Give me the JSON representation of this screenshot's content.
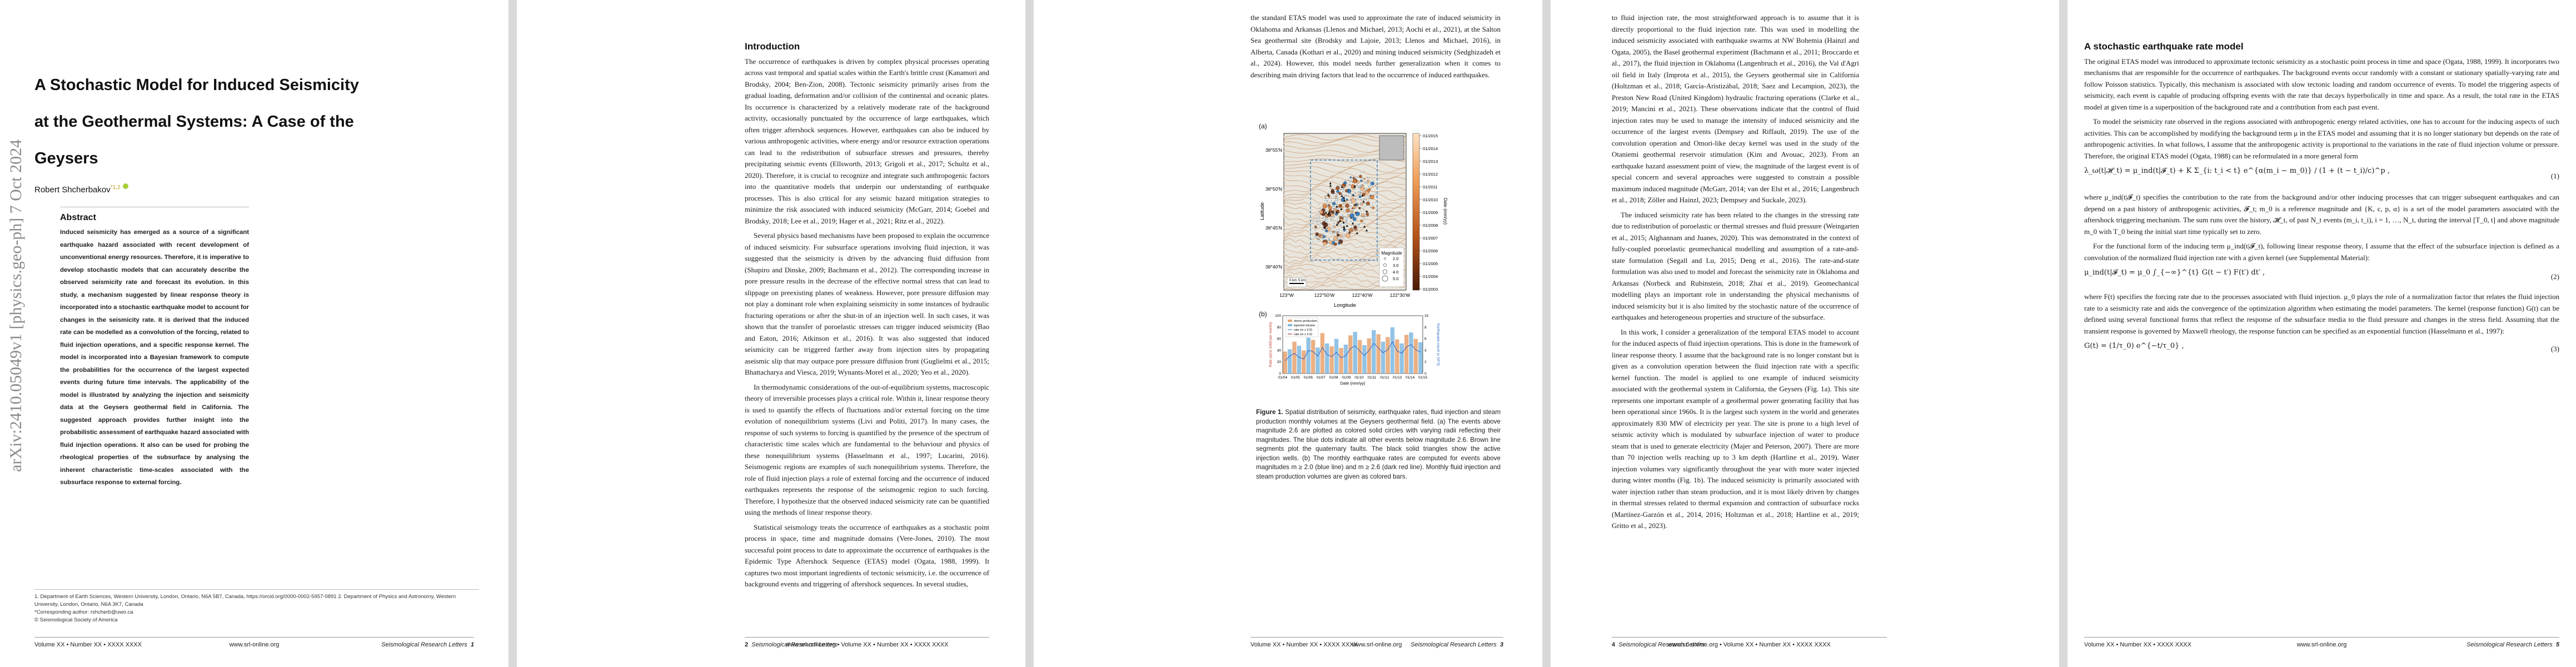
{
  "pages": [
    {
      "number": "1",
      "footer_left": "Volume XX • Number XX • XXXX XXXX",
      "footer_mid": "www.srl-online.org",
      "footer_right": "Seismological Research Letters"
    },
    {
      "number": "2",
      "footer_left": "Seismological Research Letters",
      "footer_mid": "www.srl-online.org • Volume XX • Number XX • XXXX XXXX",
      "footer_right": ""
    },
    {
      "number": "3",
      "footer_left": "Volume XX • Number XX • XXXX XXXX",
      "footer_mid": "www.srl-online.org",
      "footer_right": "Seismological Research Letters"
    },
    {
      "number": "4",
      "footer_left": "Seismological Research Letters",
      "footer_mid": "www.srl-online.org • Volume XX • Number XX • XXXX XXXX",
      "footer_right": ""
    },
    {
      "number": "5",
      "footer_left": "Volume XX • Number XX • XXXX XXXX",
      "footer_mid": "www.srl-online.org",
      "footer_right": "Seismological Research Letters"
    }
  ],
  "page1": {
    "arxiv_stamp": "arXiv:2410.05049v1  [physics.geo-ph]  7 Oct 2024",
    "title_lines": [
      "A Stochastic Model for Induced Seismicity",
      "at the Geothermal Systems: A Case of the",
      "Geysers"
    ],
    "author": "Robert Shcherbakov",
    "author_sup": "*1,2",
    "abstract_heading": "Abstract",
    "abstract": "Induced seismicity has emerged as a source of a significant earthquake hazard associated with recent development of unconventional energy resources. Therefore, it is imperative to develop stochastic models that can accurately describe the observed seismicity rate and forecast its evolution. In this study, a mechanism suggested by linear response theory is incorporated into a stochastic earthquake model to account for changes in the seismicity rate. It is derived that the induced rate can be modelled as a convolution of the forcing, related to fluid injection operations, and a specific response kernel. The model is incorporated into a Bayesian framework to compute the probabilities for the occurrence of the largest expected events during future time intervals. The applicability of the model is illustrated by analyzing the injection and seismicity data at the Geysers geothermal field in California. The suggested approach provides further insight into the probabilistic assessment of earthquake hazard associated with fluid injection operations. It also can be used for probing the rheological properties of the subsurface by analysing the inherent characteristic time-scales associated with the subsurface response to external forcing.",
    "footnotes": [
      "1. Department of Earth Sciences, Western University, London, Ontario, N6A 5B7, Canada, https://orcid.org/0000-0002-5957-0891 2. Department of Physics and Astronomy, Western University, London, Ontario, N6A 3K7, Canada",
      "*Corresponding author: rshcherb@uwo.ca",
      "© Seismological Society of America"
    ]
  },
  "page2": {
    "heading": "Introduction",
    "paragraphs": [
      "The occurrence of earthquakes is driven by complex physical processes operating across vast temporal and spatial scales within the Earth's brittle crust (Kanamori and Brodsky, 2004; Ben-Zion, 2008). Tectonic seismicity primarily arises from the gradual loading, deformation and/or collision of the continental and oceanic plates. Its occurrence is characterized by a relatively moderate rate of the background activity, occasionally punctuated by the occurrence of large earthquakes, which often trigger aftershock sequences. However, earthquakes can also be induced by various anthropogenic activities, where energy and/or resource extraction operations can lead to the redistribution of subsurface stresses and pressures, thereby precipitating seismic events (Ellsworth, 2013; Grigoli et al., 2017; Schultz et al., 2020). Therefore, it is crucial to recognize and integrate such anthropogenic factors into the quantitative models that underpin our understanding of earthquake processes. This is also critical for any seismic hazard mitigation strategies to minimize the risk associated with induced seismicity (McGarr, 2014; Goebel and Brodsky, 2018; Lee et al., 2019; Hager et al., 2021; Ritz et al., 2022).",
      "Several physics based mechanisms have been proposed to explain the occurrence of induced seismicity. For subsurface operations involving fluid injection, it was suggested that the seismicity is driven by the advancing fluid diffusion front (Shapiro and Dinske, 2009; Bachmann et al., 2012). The corresponding increase in pore pressure results in the decrease of the effective normal stress that can lead to slippage on preexisting planes of weakness. However, pore pressure diffusion may not play a dominant role when explaining seismicity in some instances of hydraulic fracturing operations or after the shut-in of an injection well. In such cases, it was shown that the transfer of poroelastic stresses can trigger induced seismicity (Bao and Eaton, 2016; Atkinson et al., 2016). It was also suggested that induced seismicity can be triggered farther away from injection sites by propagating aseismic slip that may outpace pore pressure diffusion front (Guglielmi et al., 2015; Bhattacharya and Viesca, 2019; Wynants-Morel et al., 2020; Yeo et al., 2020).",
      "In thermodynamic considerations of the out-of-equilibrium systems, macroscopic theory of irreversible processes plays a critical role. Within it, linear response theory is used to quantify the effects of fluctuations and/or external forcing on the time evolution of nonequilibrium systems (Livi and Politi, 2017). In many cases, the response of such systems to forcing is quantified by the presence of the spectrum of characteristic time scales which are fundamental to the behaviour and physics of these nonequilibrium systems (Hasselmann et al., 1997; Lucarini, 2016). Seismogenic regions are examples of such nonequilibrium systems. Therefore, the role of fluid injection plays a role of external forcing and the occurrence of induced earthquakes represents the response of the seismogenic region to such forcing. Therefore, I hypothesize that the observed induced seismicity rate can be quantified using the methods of linear response theory.",
      "Statistical seismology treats the occurrence of earthquakes as a stochastic point process in space, time and magnitude domains (Vere-Jones, 2010). The most successful point process to date to approximate the occurrence of earthquakes is the Epidemic Type Aftershock Sequence (ETAS) model (Ogata, 1988, 1999). It captures two most important ingredients of tectonic seismicity, i.e. the occurrence of background events and triggering of aftershock sequences. In several studies,"
    ]
  },
  "page3": {
    "paragraph": "the standard ETAS model was used to approximate the rate of induced seismicity in Oklahoma and Arkansas (Llenos and Michael, 2013; Aochi et al., 2021), at the Salton Sea geothermal site (Brodsky and Lajoie, 2013; Llenos and Michael, 2016), in Alberta, Canada (Kothari et al., 2020) and mining induced seismicity (Sedghizadeh et al., 2024). However, this model needs further generalization when it comes to describing main driving factors that lead to the occurrence of induced earthquakes.",
    "panel_a_label": "(a)",
    "panel_b_label": "(b)",
    "map": {
      "lat_ticks": [
        "38°55'N",
        "38°50'N",
        "38°45'N",
        "38°40'N"
      ],
      "lon_ticks": [
        "123°W",
        "122°50'W",
        "122°40'W",
        "122°30'W"
      ],
      "xlabel": "Longitude",
      "ylabel": "Latitude",
      "colorbar_ticks": [
        "01/2015",
        "01/2014",
        "01/2013",
        "01/2012",
        "01/2011",
        "01/2010",
        "01/2009",
        "01/2008",
        "01/2007",
        "01/2006",
        "01/2005",
        "01/2004",
        "01/2003"
      ],
      "colorbar_label": "Date (mm/yy)",
      "legend_title": "Magnitude",
      "legend_items": [
        "2.0",
        "3.0",
        "4.0",
        "5.0"
      ],
      "scale_labels": [
        "5 km",
        "0 km"
      ]
    },
    "chart_data": {
      "type": "bar",
      "xlabel": "Date (mm/yy)",
      "ylabel_left": "Rate (eq's/ 1000 per month)",
      "ylabel_right": "Earthquake count (x 10^3)",
      "x_ticks": [
        "01/04",
        "01/05",
        "01/06",
        "01/07",
        "01/08",
        "01/09",
        "01/10",
        "01/11",
        "01/12",
        "01/13",
        "01/14",
        "01/15"
      ],
      "y_ticks_left": [
        "0",
        "20",
        "40",
        "60",
        "80",
        "100"
      ],
      "y_ticks_right": [
        "0",
        "2",
        "4",
        "6",
        "8",
        "10"
      ],
      "legend": [
        "stress production",
        "injected volume",
        "rate (m ≥ 2.0)",
        "rate (m ≥ 2.6)"
      ],
      "series": [
        {
          "name": "injected volume",
          "values": [
            38,
            42,
            55,
            48,
            40,
            62,
            58,
            45,
            70,
            52,
            47,
            60,
            44,
            50,
            66,
            72,
            58,
            49,
            61,
            75,
            68,
            55,
            63,
            80,
            59,
            52,
            67,
            71,
            60,
            54
          ]
        },
        {
          "name": "rate (m ≥ 2.0)",
          "values": [
            22,
            30,
            35,
            28,
            25,
            40,
            38,
            30,
            45,
            33,
            29,
            37,
            27,
            31,
            43,
            48,
            39,
            31,
            40,
            52,
            44,
            36,
            41,
            55,
            39,
            35,
            46,
            50,
            41,
            37
          ]
        }
      ]
    },
    "caption_label": "Figure 1.",
    "caption": "Spatial distribution of seismicity, earthquake rates, fluid injection and steam production monthly volumes at the Geysers geothermal field. (a) The events above magnitude 2.6 are plotted as colored solid circles with varying radii reflecting their magnitudes. The blue dots indicate all other events below magnitude 2.6. Brown line segments plot the quaternary faults. The black solid triangles show the active injection wells. (b) The monthly earthquake rates are computed for events above magnitudes m ≥ 2.0 (blue line) and m ≥ 2.6 (dark red line). Monthly fluid injection and steam production volumes are given as colored bars."
  },
  "page4": {
    "paragraphs": [
      "to fluid injection rate, the most straightforward approach is to assume that it is directly proportional to the fluid injection rate. This was used in modelling the induced seismicity associated with earthquake swarms at NW Bohemia (Hainzl and Ogata, 2005), the Basel geothermal experiment (Bachmann et al., 2011; Broccardo et al., 2017), the fluid injection in Oklahoma (Langenbruch et al., 2016), the Val d'Agri oil field in Italy (Improta et al., 2015), the Geysers geothermal site in California (Holtzman et al., 2018; García-Aristizábal, 2018; Saez and Lecampion, 2023), the Preston New Road (United Kingdom) hydraulic fracturing operations (Clarke et al., 2019; Mancini et al., 2021). These observations indicate that the control of fluid injection rates may be used to manage the intensity of induced seismicity and the occurrence of the largest events (Dempsey and Riffault, 2019). The use of the convolution operation and Omori-like decay kernel was used in the study of the Otaniemi geothermal reservoir stimulation (Kim and Avouac, 2023). From an earthquake hazard assessment point of view, the magnitude of the largest event is of special concern and several approaches were suggested to constrain a possible maximum induced magnitude (McGarr, 2014; van der Elst et al., 2016; Langenbruch et al., 2018; Zöller and Hainzl, 2023; Dempsey and Suckale, 2023).",
      "The induced seismicity rate has been related to the changes in the stressing rate due to redistribution of poroelastic or thermal stresses and fluid pressure (Weingarten et al., 2015; Alghannam and Juanes, 2020). This was demonstrated in the context of fully-coupled poroelastic geomechanical modelling and assumption of a rate-and-state formulation (Segall and Lu, 2015; Deng et al., 2016). The rate-and-state formulation was also used to model and forecast the seismicity rate in Oklahoma and Arkansas (Norbeck and Rubinstein, 2018; Zhai et al., 2019). Geomechanical modelling plays an important role in understanding the physical mechanisms of induced seismicity but it is also limited by the stochastic nature of the occurrence of earthquakes and heterogeneous properties and structure of the subsurface.",
      "In this work, I consider a generalization of the temporal ETAS model to account for the induced aspects of fluid injection operations. This is done in the framework of linear response theory. I assume that the background rate is no longer constant but is given as a convolution operation between the fluid injection rate with a specific kernel function. The model is applied to one example of induced seismicity associated with the geothermal system in California, the Geysers (Fig. 1a). This site represents one important example of a geothermal power generating facility that has been operational since 1960s. It is the largest such system in the world and generates approximately 830 MW of electricity per year. The site is prone to a high level of seismic activity which is modulated by subsurface injection of water to produce steam that is used to generate electricity (Majer and Peterson, 2007). There are more than 70 injection wells reaching up to 3 km depth (Hartline et al., 2019). Water injection volumes vary significantly throughout the year with more water injected during winter months (Fig. 1b). The induced seismicity is primarily associated with water injection rather than steam production, and it is most likely driven by changes in thermal stresses related to thermal expansion and contraction of subsurface rocks (Martínez-Garzón et al., 2014, 2016; Holtzman et al., 2018; Hartline et al., 2019; Grittо et al., 2023)."
    ]
  },
  "page5": {
    "heading": "A stochastic earthquake rate model",
    "paragraphs": [
      "The original ETAS model was introduced to approximate tectonic seismicity as a stochastic point process in time and space (Ogata, 1988, 1999). It incorporates two mechanisms that are responsible for the occurrence of earthquakes. The background events occur randomly with a constant or stationary spatially-varying rate and follow Poisson statistics. Typically, this mechanism is associated with slow tectonic loading and random occurrence of events. To model the triggering aspects of seismicity, each event is capable of producing offspring events with the rate that decays hyperbolically in time and space. As a result, the total rate in the ETAS model at given time is a superposition of the background rate and a contribution from each past event.",
      "To model the seismicity rate observed in the regions associated with anthropogenic energy related activities, one has to account for the inducing aspects of such activities. This can be accomplished by modifying the background term μ in the ETAS model and assuming that it is no longer stationary but depends on the rate of anthropogenic activities. In what follows, I assume that the anthropogenic activity is proportional to the variations in the rate of fluid injection volume or pressure. Therefore, the original ETAS model (Ogata, 1988) can be reformulated in a more general form"
    ],
    "eq1": "λ_ω(t|𝓗_t) = μ_ind(t|𝓕_t) + K Σ_{i: t_i < t} e^{α(m_i − m_0)} / (1 + (t − t_i)/c)^p ,",
    "eq1_num": "(1)",
    "para2": "where μ_ind(t|𝓕_t) specifies the contribution to the rate from the background and/or other inducing processes that can trigger subsequent earthquakes and can depend on a past history of anthropogenic activities, 𝓕_t; m_0 is a reference magnitude and {K, c, p, α} is a set of the model parameters associated with the aftershock triggering mechanism. The sum runs over the history, 𝓗_t, of past N_t events (m_i, t_i), i = 1, …, N_t, during the interval [T_0, t] and above magnitude m_0 with T_0 being the initial start time typically set to zero.",
    "para3": "For the functional form of the inducing term μ_ind(t|𝓕_t), following linear response theory, I assume that the effect of the subsurface injection is defined as a convolution of the normalized fluid injection rate with a given kernel (see Supplemental Material):",
    "eq2": "μ_ind(t|𝓕_t) = μ_0 ∫_{−∞}^{t} G(t − t′) F(t′) dt′ ,",
    "eq2_num": "(2)",
    "para4": "where F(t) specifies the forcing rate due to the processes associated with fluid injection. μ_0 plays the role of a normalization factor that relates the fluid injection rate to a seismicity rate and aids the convergence of the optimization algorithm when estimating the model parameters. The kernel (response function) G(t) can be defined using several functional forms that reflect the response of the subsurface media to the fluid pressure and changes in the stress field. Assuming that the transient response is governed by Maxwell rheology, the response function can be specified as an exponential function (Hasselmann et al., 1997):",
    "eq3": "G(t) = (1/τ_0) e^{−t/τ_0} ,",
    "eq3_num": "(3)"
  }
}
